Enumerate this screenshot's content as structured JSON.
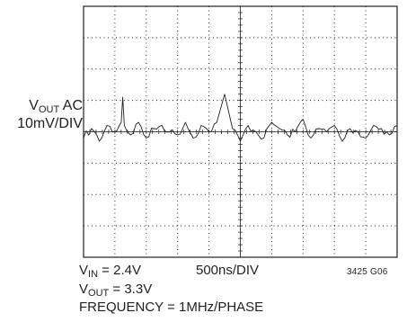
{
  "chart_data": {
    "type": "line",
    "title": "",
    "y_label_main": "V",
    "y_label_sub": "OUT",
    "y_label_rest": " AC",
    "y_scale": "10mV/DIV",
    "x_scale": "500ns/DIV",
    "grid": true,
    "x_divisions": 10,
    "y_divisions": 8,
    "x_range_div": [
      0,
      10
    ],
    "y_range_div": [
      -4,
      4
    ],
    "series": [
      {
        "trace": "V_OUT AC ripple",
        "x_div": [
          0.0,
          0.25,
          0.5,
          0.75,
          1.0,
          1.2,
          1.25,
          1.3,
          1.5,
          1.75,
          2.0,
          2.25,
          2.5,
          2.75,
          3.0,
          3.25,
          3.5,
          3.75,
          4.0,
          4.25,
          4.5,
          4.75,
          5.0,
          5.25,
          5.5,
          5.75,
          6.0,
          6.25,
          6.5,
          6.75,
          7.0,
          7.25,
          7.5,
          7.75,
          8.0,
          8.25,
          8.5,
          8.75,
          9.0,
          9.25,
          9.5,
          9.75,
          10.0
        ],
        "y_div": [
          -0.2,
          0.1,
          -0.3,
          0.2,
          0.0,
          0.3,
          1.1,
          0.2,
          -0.1,
          0.3,
          -0.2,
          0.1,
          0.2,
          0.0,
          -0.1,
          0.3,
          -0.2,
          0.2,
          0.0,
          0.3,
          1.2,
          0.1,
          -0.3,
          0.2,
          0.0,
          -0.2,
          0.3,
          0.1,
          -0.1,
          0.0,
          0.4,
          -0.2,
          0.1,
          0.0,
          0.2,
          -0.3,
          0.1,
          0.0,
          -0.2,
          0.2,
          0.1,
          -0.1,
          0.2
        ]
      }
    ]
  },
  "footer": {
    "vin_main": "V",
    "vin_sub": "IN",
    "vin_rest": " = 2.4V",
    "vout_main": "V",
    "vout_sub": "OUT",
    "vout_rest": " = 3.3V",
    "frequency": "FREQUENCY = 1MHz/PHASE",
    "figure_code": "3425 G06"
  }
}
